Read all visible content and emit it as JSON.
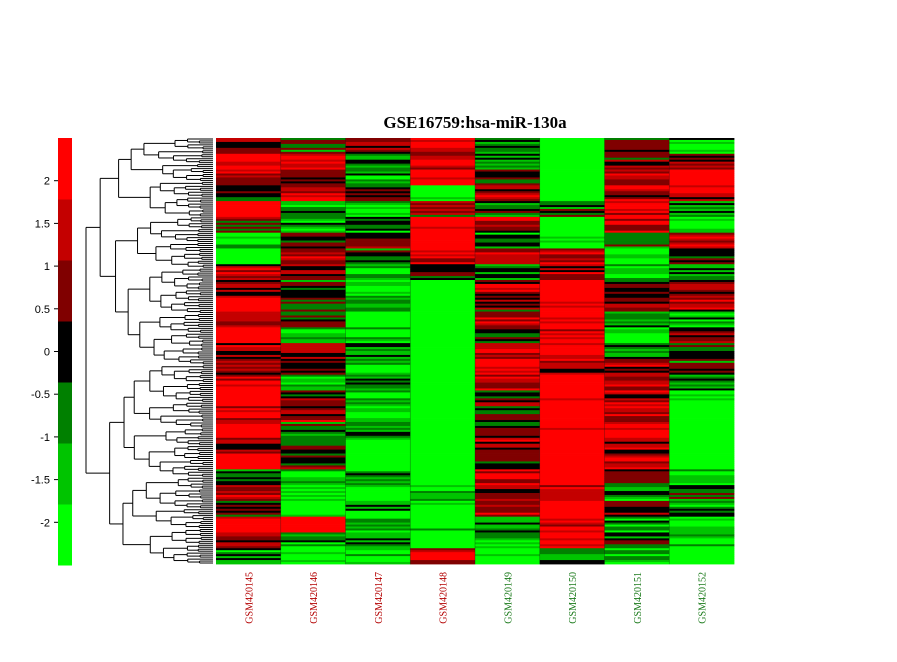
{
  "chart_data": {
    "type": "heatmap",
    "title": "GSE16759:hsa-miR-130a",
    "colorbar": {
      "ticks": [
        "2",
        "1.5",
        "1",
        "0.5",
        "0",
        "-0.5",
        "-1",
        "-1.5",
        "-2"
      ],
      "tick_values": [
        2,
        1.5,
        1,
        0.5,
        0,
        -0.5,
        -1,
        -1.5,
        -2
      ],
      "range": [
        -2.5,
        2.5
      ],
      "colors": [
        "#00ff00",
        "#00c400",
        "#008000",
        "#000000",
        "#800000",
        "#c40000",
        "#ff0000"
      ]
    },
    "columns": [
      {
        "name": "GSM420145",
        "color": "#b30000"
      },
      {
        "name": "GSM420146",
        "color": "#b30000"
      },
      {
        "name": "GSM420147",
        "color": "#b30000"
      },
      {
        "name": "GSM420148",
        "color": "#b30000"
      },
      {
        "name": "GSM420149",
        "color": "#1a7a1a"
      },
      {
        "name": "GSM420150",
        "color": "#1a7a1a"
      },
      {
        "name": "GSM420151",
        "color": "#1a7a1a"
      },
      {
        "name": "GSM420152",
        "color": "#1a7a1a"
      }
    ],
    "row_blocks": [
      [
        0.8,
        -0.2,
        0.4,
        1.8,
        -0.8,
        -2.2,
        0.2,
        -1.2
      ],
      [
        2.0,
        1.8,
        -0.6,
        1.6,
        -1.0,
        -2.4,
        0.6,
        0.3
      ],
      [
        1.4,
        0.9,
        -1.3,
        2.0,
        0.1,
        -2.2,
        1.2,
        2.2
      ],
      [
        -0.4,
        1.5,
        -0.1,
        -2.0,
        1.2,
        -2.3,
        1.4,
        1.1
      ],
      [
        2.1,
        -0.9,
        -1.6,
        0.6,
        -0.5,
        -0.3,
        1.9,
        -0.6
      ],
      [
        0.3,
        -1.4,
        -0.8,
        2.1,
        0.9,
        -2.2,
        1.7,
        -1.8
      ],
      [
        -1.9,
        0.6,
        0.9,
        2.2,
        -1.0,
        -2.0,
        -0.5,
        0.8
      ],
      [
        -2.1,
        1.6,
        -0.5,
        1.9,
        1.4,
        1.8,
        -2.0,
        0.2
      ],
      [
        1.2,
        0.9,
        -1.3,
        -0.1,
        -0.7,
        1.0,
        -1.6,
        -0.9
      ],
      [
        0.7,
        -0.4,
        -2.0,
        -2.3,
        0.9,
        2.2,
        0.1,
        0.7
      ],
      [
        2.0,
        -0.2,
        -1.7,
        -2.3,
        0.6,
        2.1,
        0.7,
        1.2
      ],
      [
        1.5,
        0.0,
        -2.1,
        -2.3,
        1.5,
        2.0,
        -0.6,
        -1.3
      ],
      [
        2.2,
        -1.0,
        -1.4,
        -2.3,
        -0.1,
        1.6,
        -1.9,
        0.9
      ],
      [
        0.9,
        0.8,
        -0.6,
        -2.2,
        1.8,
        2.1,
        -0.9,
        0.0
      ],
      [
        0.6,
        0.4,
        -1.8,
        -2.3,
        2.0,
        1.2,
        0.8,
        -0.3
      ],
      [
        1.9,
        -1.2,
        -0.9,
        -2.2,
        1.2,
        2.2,
        1.4,
        -1.1
      ],
      [
        2.2,
        0.3,
        -1.5,
        -2.3,
        0.4,
        2.1,
        1.1,
        -2.0
      ],
      [
        1.7,
        1.1,
        -2.0,
        -2.3,
        -0.3,
        2.2,
        1.8,
        -2.2
      ],
      [
        2.1,
        -0.3,
        -0.7,
        -2.2,
        0.2,
        2.0,
        2.0,
        -2.3
      ],
      [
        1.0,
        0.0,
        -1.6,
        -2.3,
        0.9,
        2.2,
        0.9,
        -2.1
      ],
      [
        2.2,
        0.1,
        -2.2,
        -2.3,
        -0.1,
        2.1,
        1.3,
        -2.2
      ],
      [
        -0.5,
        -1.3,
        -1.4,
        -2.2,
        1.3,
        2.2,
        0.2,
        -1.8
      ],
      [
        0.8,
        -2.0,
        -2.1,
        -1.6,
        0.7,
        1.7,
        -0.8,
        -0.4
      ],
      [
        -0.2,
        -1.8,
        -1.2,
        -2.0,
        1.1,
        2.2,
        0.5,
        -0.9
      ],
      [
        2.0,
        2.2,
        -1.6,
        -1.9,
        -0.7,
        1.4,
        -1.1,
        -2.0
      ],
      [
        1.1,
        -0.8,
        -0.9,
        -2.2,
        -1.6,
        2.0,
        -0.2,
        -1.6
      ],
      [
        -0.9,
        -2.1,
        -1.8,
        1.9,
        -2.0,
        -0.6,
        -1.5,
        -2.3
      ]
    ]
  }
}
